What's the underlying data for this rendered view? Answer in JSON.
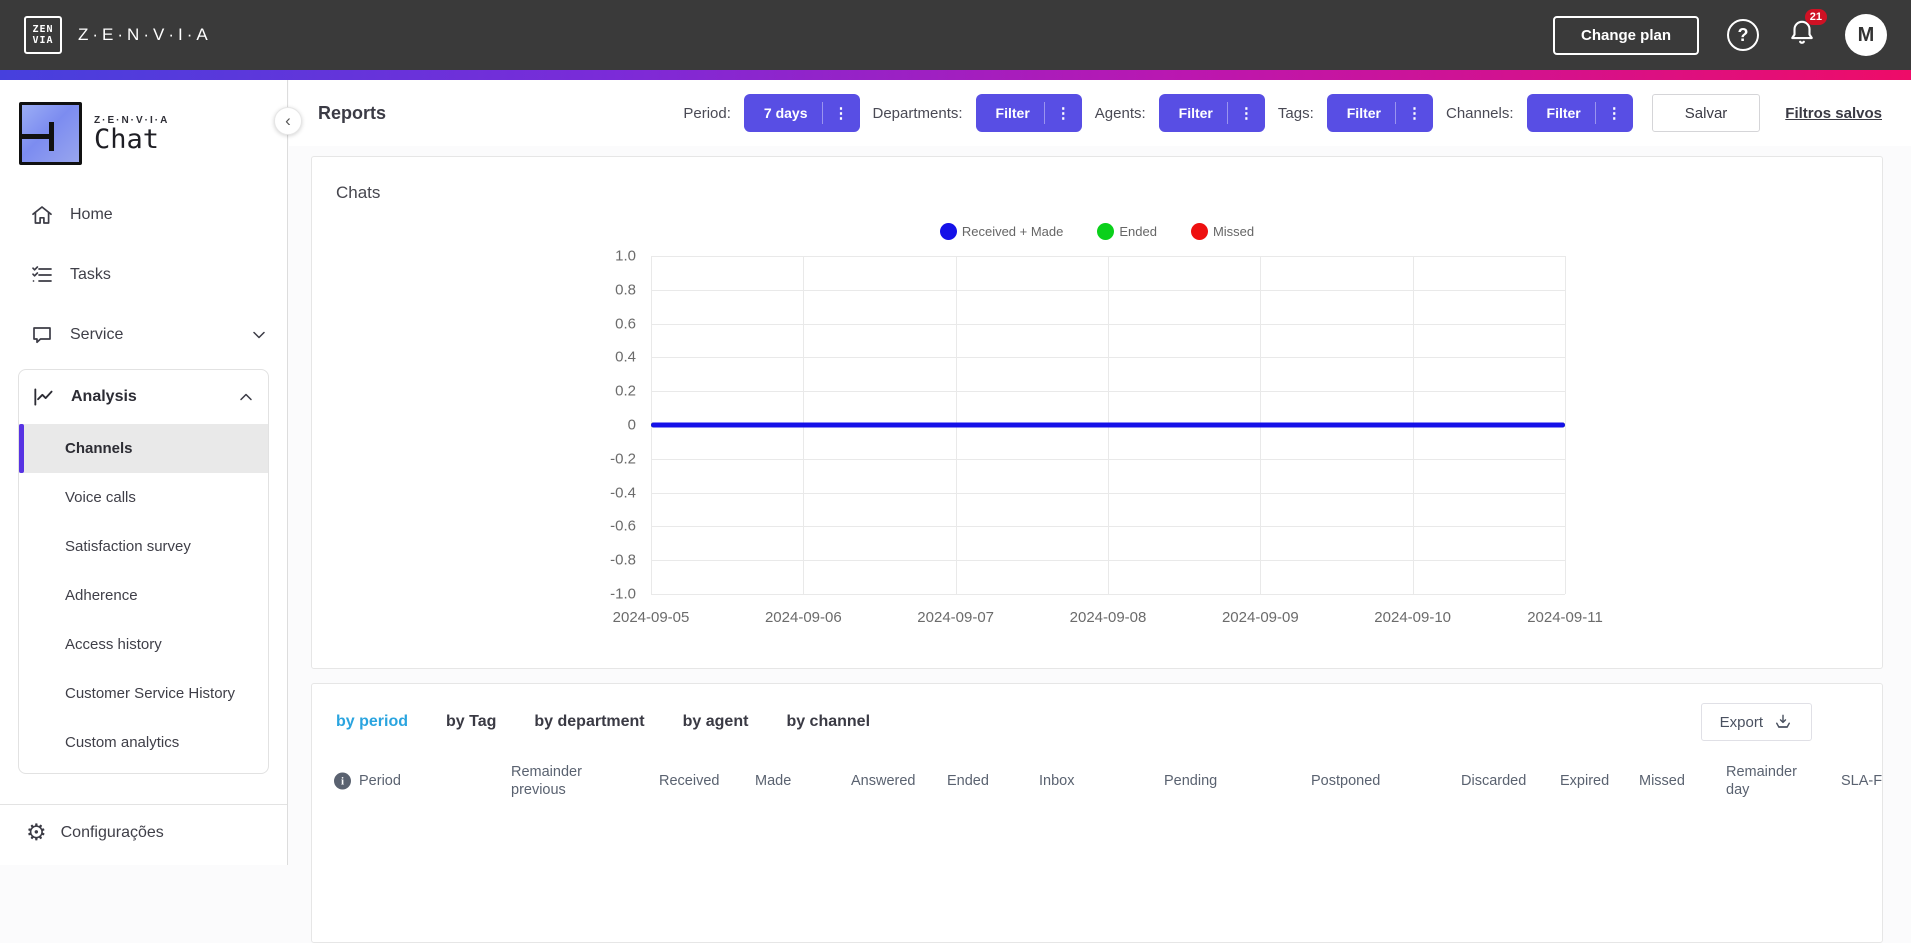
{
  "topbar": {
    "brand": "Z·E·N·V·I·A",
    "logo_line1": "ZEN",
    "logo_line2": "VIA",
    "change_plan_label": "Change plan",
    "notification_count": "21",
    "avatar_initial": "M"
  },
  "icons": {
    "menu_dots": "⋮",
    "gear": "⚙",
    "collapse_chevron": "‹",
    "help": "?"
  },
  "sidebar": {
    "logo_brand": "Z·E·N·V·I·A",
    "logo_product": "Chat",
    "items": [
      {
        "label": "Home"
      },
      {
        "label": "Tasks"
      },
      {
        "label": "Service"
      },
      {
        "label": "Analysis"
      }
    ],
    "analysis_children": [
      "Channels",
      "Voice calls",
      "Satisfaction survey",
      "Adherence",
      "Access history",
      "Customer Service History",
      "Custom analytics"
    ],
    "active_child": "Channels",
    "settings_label": "Configurações"
  },
  "header": {
    "title": "Reports",
    "filters": [
      {
        "id": "period",
        "label": "Period:",
        "button": "7 days"
      },
      {
        "id": "departments",
        "label": "Departments:",
        "button": "Filter"
      },
      {
        "id": "agents",
        "label": "Agents:",
        "button": "Filter"
      },
      {
        "id": "tags",
        "label": "Tags:",
        "button": "Filter"
      },
      {
        "id": "channels",
        "label": "Channels:",
        "button": "Filter"
      }
    ],
    "save_label": "Salvar",
    "saved_filters_label": "Filtros salvos"
  },
  "chart_card": {
    "title": "Chats"
  },
  "chart_data": {
    "type": "line",
    "title": "Chats",
    "x": [
      "2024-09-05",
      "2024-09-06",
      "2024-09-07",
      "2024-09-08",
      "2024-09-09",
      "2024-09-10",
      "2024-09-11"
    ],
    "series": [
      {
        "name": "Received + Made",
        "color": "#1511e8",
        "values": [
          0,
          0,
          0,
          0,
          0,
          0,
          0
        ]
      },
      {
        "name": "Ended",
        "color": "#0ad01a",
        "values": [
          0,
          0,
          0,
          0,
          0,
          0,
          0
        ]
      },
      {
        "name": "Missed",
        "color": "#ee1010",
        "values": [
          0,
          0,
          0,
          0,
          0,
          0,
          0
        ]
      }
    ],
    "ylim": [
      -1.0,
      1.0
    ],
    "ytick_labels": [
      "1.0",
      "0.8",
      "0.6",
      "0.4",
      "0.2",
      "0",
      "-0.2",
      "-0.4",
      "-0.6",
      "-0.8",
      "-1.0"
    ],
    "grid": true,
    "legend_position": "top"
  },
  "table": {
    "tabs": [
      "by period",
      "by Tag",
      "by department",
      "by agent",
      "by channel"
    ],
    "active_tab": "by period",
    "export_label": "Export",
    "columns": [
      "Period",
      "Remainder previous",
      "Received",
      "Made",
      "Answered",
      "Ended",
      "Inbox",
      "Pending",
      "Postponed",
      "Discarded",
      "Expired",
      "Missed",
      "Remainder day",
      "SLA-FR"
    ],
    "rows": []
  },
  "colors": {
    "topbar_bg": "#3a3a3a",
    "accent_purple": "#584ee4",
    "active_indicator": "#5733e3",
    "active_tab_blue": "#2aa4df",
    "line_blue": "#1511e8",
    "gradient": [
      "#4640dd",
      "#7b2bd8",
      "#bb17b0",
      "#ee0c68"
    ]
  }
}
